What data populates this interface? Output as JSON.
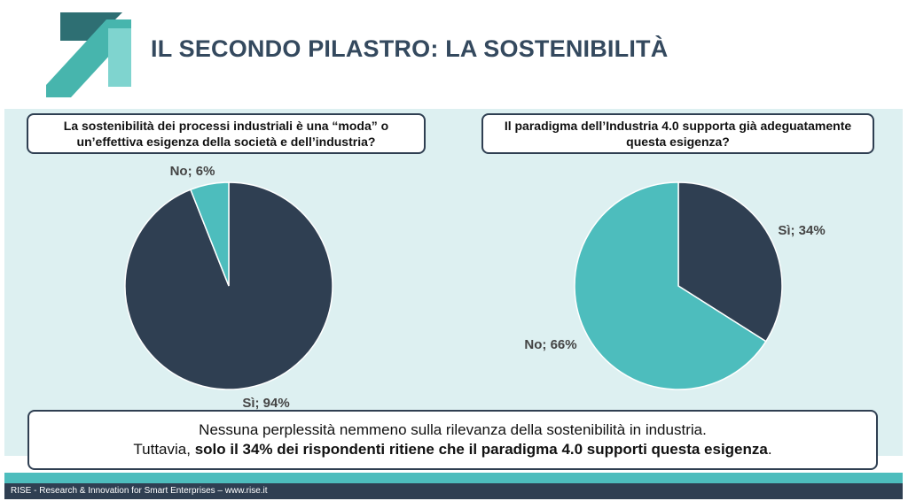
{
  "header": {
    "title": "IL SECONDO PILASTRO: LA SOSTENIBILITÀ"
  },
  "colors": {
    "dark": "#2f3f52",
    "teal": "#4dbdbd",
    "panel": "#ddf0f1"
  },
  "chart_data": [
    {
      "type": "pie",
      "title_lines": [
        "La sostenibilità dei processi industriali è una “moda” o",
        "un’effettiva esigenza della società e dell’industria?"
      ],
      "slices": [
        {
          "label": "Sì; 94%",
          "value": 94,
          "color": "#2f3f52"
        },
        {
          "label": "No; 6%",
          "value": 6,
          "color": "#4dbdbd"
        }
      ]
    },
    {
      "type": "pie",
      "title_lines": [
        "Il paradigma dell’Industria 4.0 supporta già adeguatamente",
        "questa esigenza?"
      ],
      "slices": [
        {
          "label": "Sì; 34%",
          "value": 34,
          "color": "#2f3f52"
        },
        {
          "label": "No; 66%",
          "value": 66,
          "color": "#4dbdbd"
        }
      ]
    }
  ],
  "conclusion": {
    "line1": "Nessuna perplessità nemmeno sulla rilevanza della sostenibilità in industria.",
    "line2_prefix": "Tuttavia, ",
    "line2_bold": "solo il 34% dei rispondenti ritiene che il paradigma 4.0 supporti questa esigenza",
    "line2_suffix": "."
  },
  "footer": {
    "text": "RISE - Research & Innovation for Smart Enterprises – www.rise.it"
  }
}
